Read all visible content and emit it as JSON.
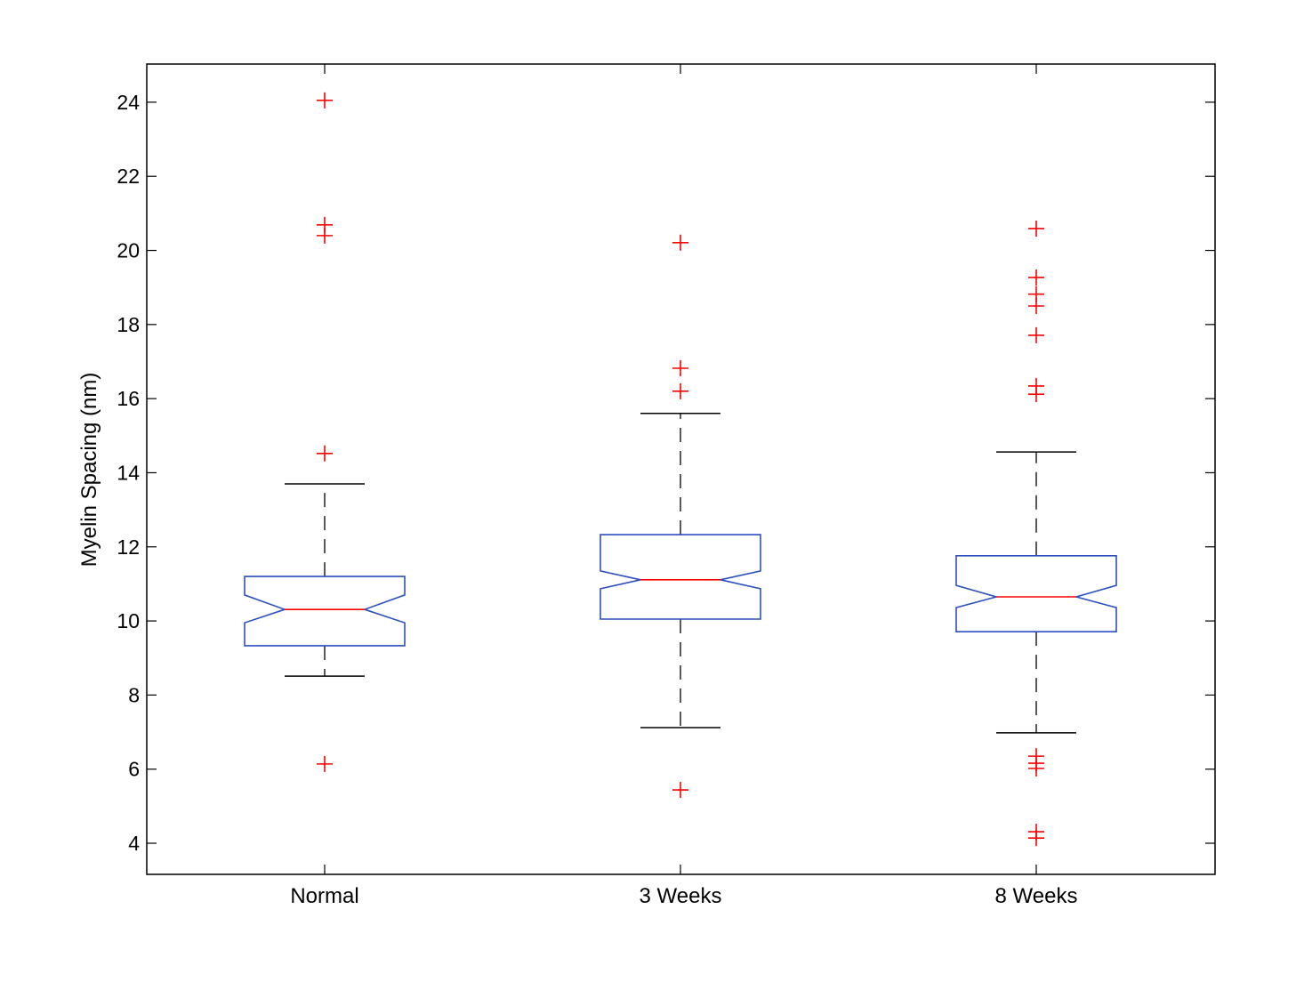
{
  "chart_data": {
    "type": "boxplot",
    "title": "",
    "xlabel": "",
    "ylabel": "Myelin Spacing (nm)",
    "ylim": [
      3.16,
      25.03
    ],
    "yticks": [
      4,
      6,
      8,
      10,
      12,
      14,
      16,
      18,
      20,
      22,
      24
    ],
    "grid": false,
    "notched": true,
    "categories": [
      "Normal",
      "3 Weeks",
      "8 Weeks"
    ],
    "groups": [
      {
        "name": "Normal",
        "whisker_low": 8.51,
        "q1": 9.33,
        "median": 10.31,
        "q3": 11.2,
        "whisker_high": 13.7,
        "notch_low": 9.95,
        "notch_high": 10.7,
        "outliers": [
          24.05,
          20.69,
          20.4,
          14.52,
          6.14
        ]
      },
      {
        "name": "3 Weeks",
        "whisker_low": 7.12,
        "q1": 10.05,
        "median": 11.11,
        "q3": 12.33,
        "whisker_high": 15.6,
        "notch_low": 10.87,
        "notch_high": 11.35,
        "outliers": [
          20.21,
          16.82,
          16.2,
          5.44
        ]
      },
      {
        "name": "8 Weeks",
        "whisker_low": 6.98,
        "q1": 9.71,
        "median": 10.65,
        "q3": 11.76,
        "whisker_high": 14.56,
        "notch_low": 10.36,
        "notch_high": 10.96,
        "outliers": [
          20.59,
          19.27,
          18.82,
          18.5,
          17.71,
          16.34,
          16.12,
          6.35,
          6.16,
          6.02,
          4.31,
          4.14
        ]
      }
    ],
    "colors": {
      "box": "#2b4fbf",
      "median": "#ff0000",
      "outlier": "#ff0000",
      "whisker": "#000000"
    }
  }
}
